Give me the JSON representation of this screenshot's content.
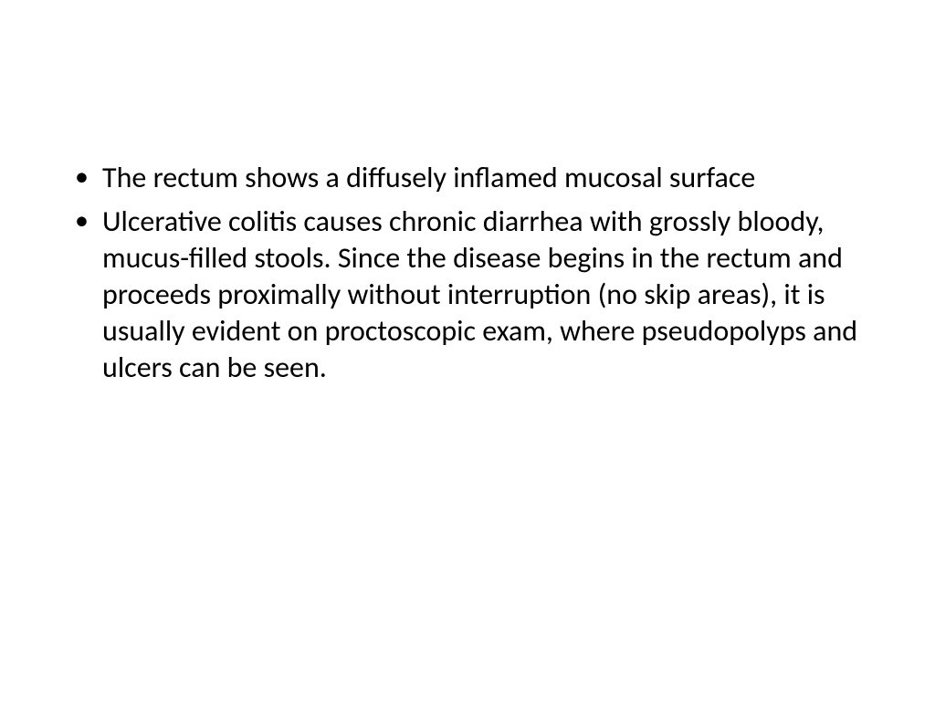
{
  "slide": {
    "background_color": "#ffffff",
    "text_color": "#000000",
    "font_family": "Calibri",
    "body_fontsize": 32,
    "bullets": [
      "The rectum shows a diffusely inflamed mucosal surface",
      "Ulcerative colitis causes chronic diarrhea with grossly bloody, mucus-filled stools. Since the disease begins in the rectum and proceeds proximally without interruption (no skip areas), it is usually evident on proctoscopic exam, where pseudopolyps and ulcers can be seen."
    ]
  }
}
